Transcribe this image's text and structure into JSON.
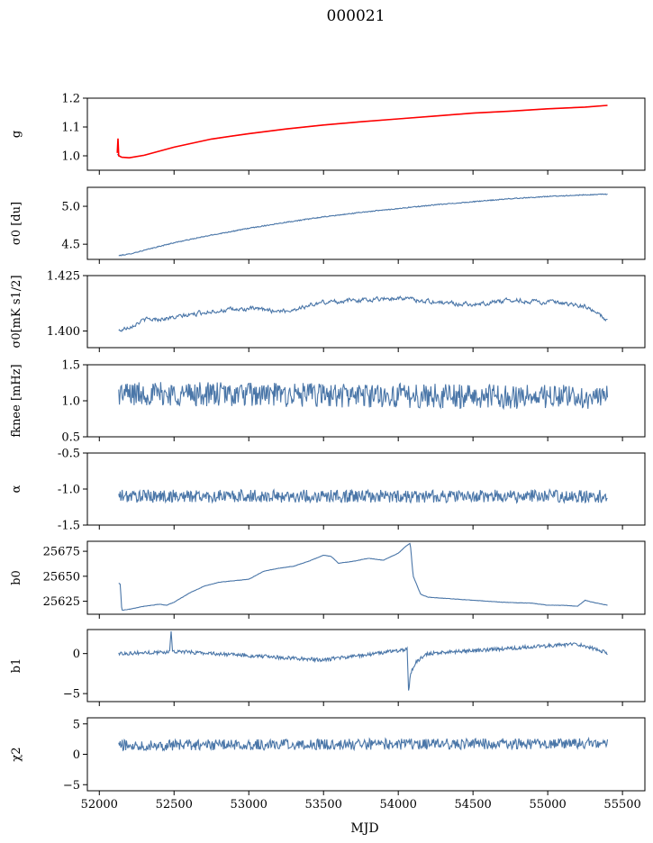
{
  "figure": {
    "title": "000021",
    "xlabel": "MJD",
    "colors": {
      "series": "#4a76a8",
      "fit": "#ff0000",
      "axes": "#000000"
    }
  },
  "chart_data": [
    {
      "type": "line",
      "id": "g",
      "ylabel": "g",
      "xlim": [
        51920,
        55650
      ],
      "ylim": [
        0.95,
        1.2
      ],
      "yticks": [
        "1.0",
        "1.1",
        "1.2"
      ],
      "ytick_values": [
        1.0,
        1.1,
        1.2
      ],
      "series": [
        {
          "x": [
            52120,
            52150,
            52200,
            52300,
            52500,
            52750,
            53000,
            53250,
            53500,
            53750,
            54000,
            54250,
            54500,
            54750,
            55000,
            55250,
            55400
          ],
          "y": [
            1.005,
            0.995,
            0.993,
            1.002,
            1.03,
            1.058,
            1.077,
            1.093,
            1.107,
            1.118,
            1.128,
            1.138,
            1.148,
            1.155,
            1.163,
            1.169,
            1.175
          ]
        },
        {
          "name": "",
          "color": "red",
          "x": [
            52120,
            52125,
            52130,
            52150,
            52200,
            52300,
            52500,
            52750,
            53000,
            53250,
            53500,
            53750,
            54000,
            54250,
            54500,
            54750,
            55000,
            55250,
            55400
          ],
          "y": [
            1.01,
            1.06,
            1.0,
            0.995,
            0.993,
            1.002,
            1.03,
            1.058,
            1.077,
            1.093,
            1.107,
            1.118,
            1.128,
            1.138,
            1.148,
            1.155,
            1.163,
            1.169,
            1.175
          ]
        }
      ]
    },
    {
      "type": "line",
      "id": "sigma0",
      "ylabel": "σ0 [du]",
      "xlim": [
        51920,
        55650
      ],
      "ylim": [
        4.3,
        5.25
      ],
      "yticks": [
        "4.5",
        "5.0"
      ],
      "ytick_values": [
        4.5,
        5.0
      ],
      "series": [
        {
          "x": [
            52130,
            52200,
            52300,
            52500,
            52750,
            53000,
            53250,
            53500,
            53750,
            54000,
            54250,
            54500,
            54750,
            55000,
            55250,
            55400
          ],
          "y": [
            4.35,
            4.37,
            4.42,
            4.52,
            4.62,
            4.71,
            4.79,
            4.86,
            4.92,
            4.97,
            5.02,
            5.06,
            5.1,
            5.13,
            5.15,
            5.16
          ]
        }
      ]
    },
    {
      "type": "line",
      "id": "sigma0_mks",
      "ylabel": "σ0[mK s1/2]",
      "xlim": [
        51920,
        55650
      ],
      "ylim": [
        1.3925,
        1.425
      ],
      "yticks": [
        "1.400",
        "1.425"
      ],
      "ytick_values": [
        1.4,
        1.425
      ],
      "series": [
        {
          "x": [
            52130,
            52300,
            52500,
            52750,
            53000,
            53250,
            53500,
            53750,
            54000,
            54250,
            54500,
            54750,
            55000,
            55250,
            55400
          ],
          "y": [
            1.4,
            1.405,
            1.406,
            1.409,
            1.41,
            1.409,
            1.413,
            1.414,
            1.415,
            1.413,
            1.412,
            1.414,
            1.413,
            1.411,
            1.405
          ]
        }
      ]
    },
    {
      "type": "line",
      "id": "fknee",
      "ylabel": "fknee [mHz]",
      "xlim": [
        51920,
        55650
      ],
      "ylim": [
        0.5,
        1.5
      ],
      "yticks": [
        "0.5",
        "1.0",
        "1.5"
      ],
      "ytick_values": [
        0.5,
        1.0,
        1.5
      ],
      "series": [
        {
          "x": [
            52130,
            55400
          ],
          "y": [
            1.1,
            1.05
          ]
        }
      ]
    },
    {
      "type": "line",
      "id": "alpha",
      "ylabel": "α",
      "xlim": [
        51920,
        55650
      ],
      "ylim": [
        -1.5,
        -0.5
      ],
      "yticks": [
        "-1.5",
        "-1.0",
        "-0.5"
      ],
      "ytick_values": [
        -1.5,
        -1.0,
        -0.5
      ],
      "series": [
        {
          "x": [
            52130,
            55400
          ],
          "y": [
            -1.1,
            -1.1
          ]
        }
      ]
    },
    {
      "type": "line",
      "id": "b0",
      "ylabel": "b0",
      "xlim": [
        51920,
        55650
      ],
      "ylim": [
        25612,
        25685
      ],
      "yticks": [
        "25625",
        "25650",
        "25675"
      ],
      "ytick_values": [
        25625,
        25650,
        25675
      ],
      "series": [
        {
          "x": [
            52130,
            52140,
            52150,
            52200,
            52300,
            52400,
            52450,
            52500,
            52600,
            52700,
            52800,
            53000,
            53100,
            53200,
            53300,
            53400,
            53500,
            53550,
            53600,
            53700,
            53800,
            53900,
            54000,
            54050,
            54080,
            54100,
            54150,
            54200,
            54300,
            54500,
            54700,
            54900,
            55000,
            55100,
            55200,
            55250,
            55300,
            55400
          ],
          "y": [
            25643,
            25642,
            25616,
            25617,
            25620,
            25622,
            25621,
            25624,
            25633,
            25640,
            25644,
            25647,
            25655,
            25658,
            25660,
            25665,
            25671,
            25670,
            25663,
            25665,
            25668,
            25666,
            25673,
            25680,
            25683,
            25650,
            25632,
            25629,
            25628,
            25626,
            25624,
            25623,
            25621,
            25621,
            25620,
            25626,
            25624,
            25621
          ]
        }
      ]
    },
    {
      "type": "line",
      "id": "b1",
      "ylabel": "b1",
      "xlim": [
        51920,
        55650
      ],
      "ylim": [
        -6,
        3
      ],
      "yticks": [
        "−5",
        "0"
      ],
      "ytick_values": [
        -5,
        0
      ],
      "series": [
        {
          "x": [
            52130,
            52470,
            52480,
            52490,
            53500,
            54060,
            54070,
            54080,
            54120,
            54200,
            55200,
            55400
          ],
          "y": [
            0,
            0.2,
            2.8,
            0.3,
            -0.8,
            0.5,
            -5.3,
            -2.5,
            -1.0,
            0.0,
            1.2,
            0.1
          ]
        }
      ]
    },
    {
      "type": "line",
      "id": "chi2",
      "ylabel": "χ2",
      "xlim": [
        51920,
        55650
      ],
      "ylim": [
        -6,
        6
      ],
      "yticks": [
        "−5",
        "0",
        "5"
      ],
      "ytick_values": [
        -5,
        0,
        5
      ],
      "series": [
        {
          "x": [
            52130,
            55400
          ],
          "y": [
            1.5,
            1.8
          ]
        }
      ]
    }
  ],
  "xaxis": {
    "ticks": [
      "52000",
      "52500",
      "53000",
      "53500",
      "54000",
      "54500",
      "55000",
      "55500"
    ],
    "tick_values": [
      52000,
      52500,
      53000,
      53500,
      54000,
      54500,
      55000,
      55500
    ]
  }
}
